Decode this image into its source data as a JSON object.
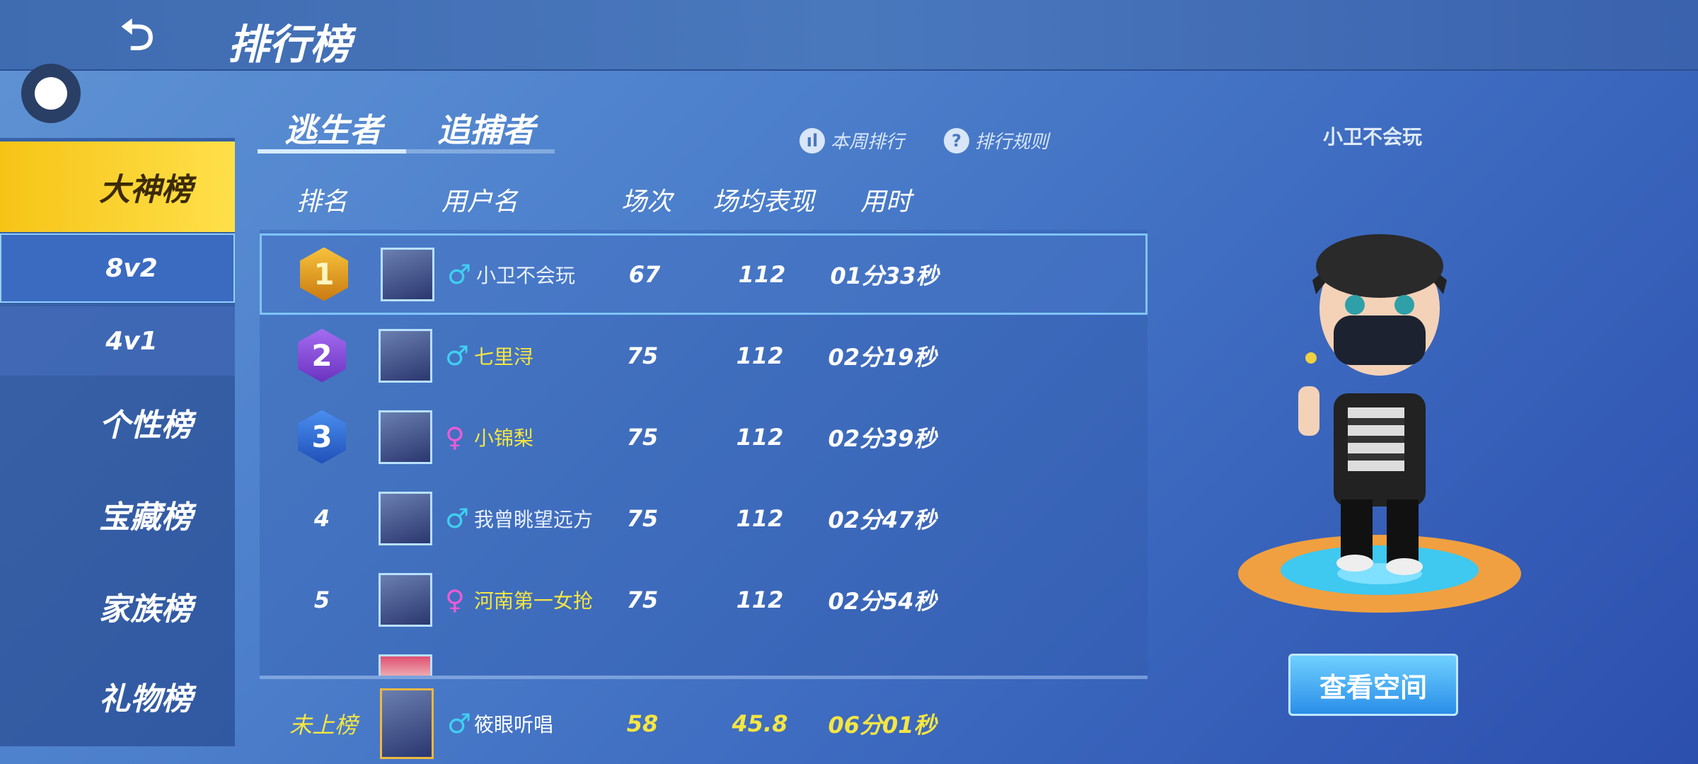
{
  "header": {
    "title": "排行榜",
    "back_icon": "back-arrow-icon"
  },
  "sidebar": {
    "items": [
      {
        "label": "大神榜",
        "state": "active"
      },
      {
        "label": "8v2",
        "state": "selected"
      },
      {
        "label": "4v1"
      },
      {
        "label": "个性榜"
      },
      {
        "label": "宝藏榜"
      },
      {
        "label": "家族榜"
      },
      {
        "label": "礼物榜"
      }
    ]
  },
  "tabs": [
    {
      "label": "逃生者",
      "active": true
    },
    {
      "label": "追捕者"
    }
  ],
  "actions": {
    "weekly": "本周排行",
    "rules": "排行规则"
  },
  "columns": [
    "排名",
    "用户名",
    "场次",
    "场均表现",
    "用时"
  ],
  "rows": [
    {
      "rank": "1",
      "gender": "♂",
      "name": "小卫不会玩",
      "games": "67",
      "avg": "112",
      "time": "01分33秒",
      "name_color": "#e8f0ff"
    },
    {
      "rank": "2",
      "gender": "♂",
      "name": "七里浔",
      "games": "75",
      "avg": "112",
      "time": "02分19秒",
      "name_color": "#f5e642"
    },
    {
      "rank": "3",
      "gender": "♀",
      "name": "小锦梨",
      "games": "75",
      "avg": "112",
      "time": "02分39秒",
      "name_color": "#f5e642"
    },
    {
      "rank": "4",
      "gender": "♂",
      "name": "我曾眺望远方",
      "games": "75",
      "avg": "112",
      "time": "02分47秒",
      "name_color": "#e8f0ff"
    },
    {
      "rank": "5",
      "gender": "♀",
      "name": "河南第一女抢",
      "games": "75",
      "avg": "112",
      "time": "02分54秒",
      "name_color": "#f5e642"
    }
  ],
  "self_row": {
    "rank": "未上榜",
    "gender": "♂",
    "name": "筱眼听唱",
    "games": "58",
    "avg": "45.8",
    "time": "06分01秒"
  },
  "profile": {
    "name": "小卫不会玩",
    "button": "查看空间"
  },
  "colors": {
    "male": "#3fd0f0",
    "female": "#f05ad8",
    "gold": "#f5e642"
  }
}
